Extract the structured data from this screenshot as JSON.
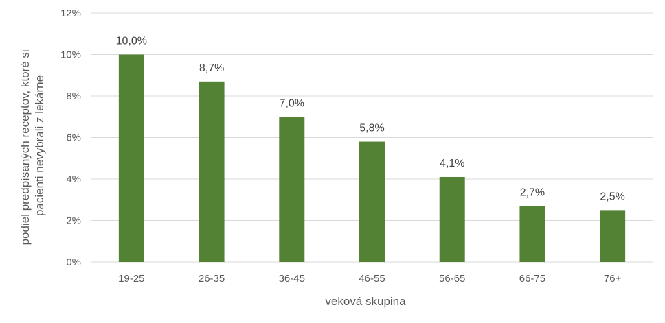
{
  "colors": {
    "bar": "#548235",
    "grid": "#d9d9d9",
    "text": "#595959",
    "data_label": "#404040"
  },
  "chart_data": {
    "type": "bar",
    "categories": [
      "19-25",
      "26-35",
      "36-45",
      "46-55",
      "56-65",
      "66-75",
      "76+"
    ],
    "values": [
      10.0,
      8.7,
      7.0,
      5.8,
      4.1,
      2.7,
      2.5
    ],
    "data_labels": [
      "10,0%",
      "8,7%",
      "7,0%",
      "5,8%",
      "4,1%",
      "2,7%",
      "2,5%"
    ],
    "title": "",
    "xlabel": "veková skupina",
    "ylabel_lines": [
      "podiel predpísaných receptov, ktoré si",
      "pacienti nevybrali z lekárne"
    ],
    "ylim": [
      0,
      12
    ],
    "yticks": [
      0,
      2,
      4,
      6,
      8,
      10,
      12
    ],
    "ytick_labels": [
      "0%",
      "2%",
      "4%",
      "6%",
      "8%",
      "10%",
      "12%"
    ],
    "grid": true,
    "legend": "none"
  }
}
